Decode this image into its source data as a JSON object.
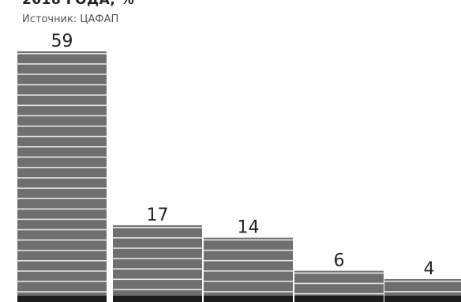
{
  "chart_data": {
    "type": "bar",
    "title": "2018 ГОДА, %",
    "subtitle": "Источник: ЦАФАП",
    "categories": [
      "",
      "",
      "",
      "",
      ""
    ],
    "values": [
      59,
      17,
      14,
      6,
      4
    ],
    "ylim": [
      0,
      59
    ],
    "grid": false,
    "legend": "none",
    "colors": {
      "bar": "#6f6f6f",
      "stripe": "#e6e6e6",
      "base": "#1c1c1c",
      "text": "#222222"
    }
  }
}
